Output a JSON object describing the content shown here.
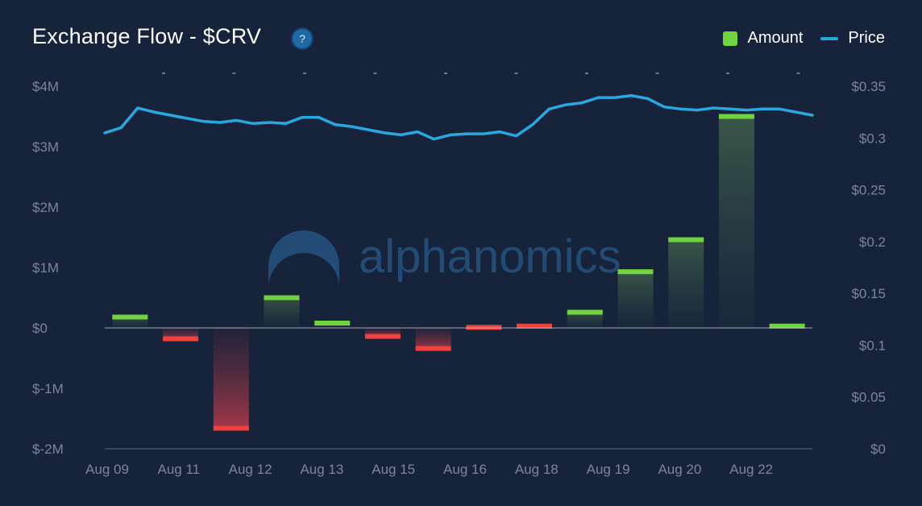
{
  "header": {
    "title": "Exchange Flow - $CRV",
    "help_glyph": "?"
  },
  "legend": {
    "amount_label": "Amount",
    "price_label": "Price"
  },
  "watermark": "alphanomics",
  "colors": {
    "background": "#17223b",
    "inflow": "#6fd43d",
    "outflow": "#f0413a",
    "price": "#29a8e0",
    "axis_text": "#7d8799"
  },
  "chart_data": {
    "type": "bar",
    "x_tick_labels": [
      "Aug 09",
      "Aug 11",
      "Aug 12",
      "Aug 13",
      "Aug 15",
      "Aug 16",
      "Aug 18",
      "Aug 19",
      "Aug 20",
      "Aug 22"
    ],
    "series": [
      {
        "name": "Amount",
        "type": "bar",
        "unit": "USD",
        "values": [
          220000,
          -220000,
          -1700000,
          540000,
          120000,
          -180000,
          -380000,
          -30000,
          -10000,
          300000,
          970000,
          1500000,
          3540000,
          70000
        ]
      },
      {
        "name": "Price",
        "type": "line",
        "unit": "USD",
        "values": [
          0.305,
          0.31,
          0.329,
          0.325,
          0.322,
          0.319,
          0.316,
          0.315,
          0.317,
          0.314,
          0.315,
          0.314,
          0.32,
          0.32,
          0.313,
          0.311,
          0.308,
          0.305,
          0.303,
          0.306,
          0.299,
          0.303,
          0.304,
          0.304,
          0.306,
          0.302,
          0.313,
          0.328,
          0.332,
          0.334,
          0.339,
          0.339,
          0.341,
          0.338,
          0.33,
          0.328,
          0.327,
          0.329,
          0.328,
          0.327,
          0.328,
          0.328,
          0.325,
          0.322
        ]
      }
    ],
    "y_left": {
      "ticks": [
        "$4M",
        "$3M",
        "$2M",
        "$1M",
        "$0",
        "$-1M",
        "$-2M"
      ],
      "range": [
        -2000000,
        4000000
      ]
    },
    "y_right": {
      "ticks": [
        "$0.35",
        "$0.3",
        "$0.25",
        "$0.2",
        "$0.15",
        "$0.1",
        "$0.05",
        "$0"
      ],
      "range": [
        0,
        0.35
      ]
    },
    "grid": false,
    "legend_position": "top-right"
  }
}
